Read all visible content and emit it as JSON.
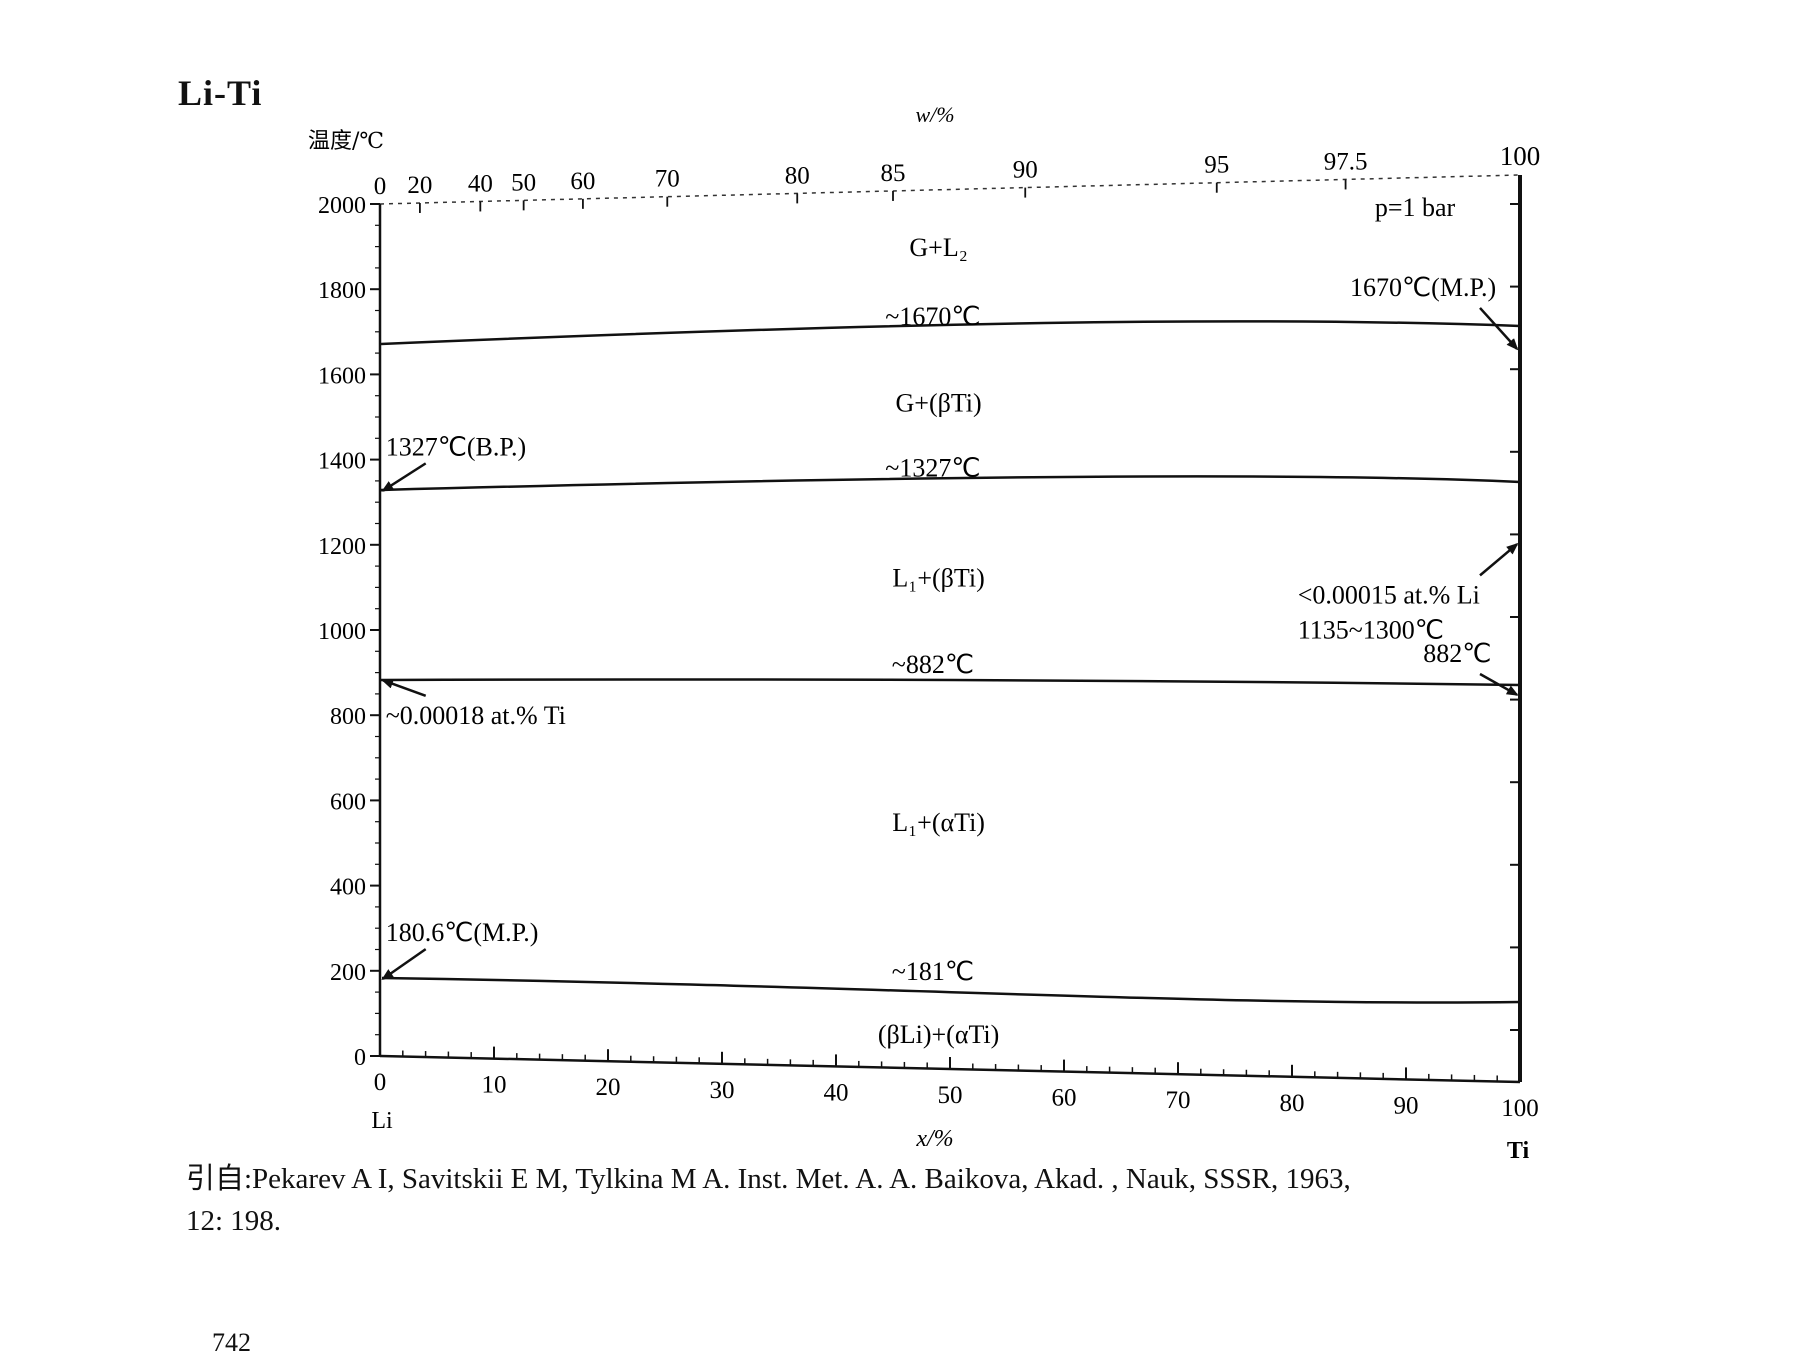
{
  "page": {
    "system_title": "Li-Ti",
    "source_line1": "引自:Pekarev A I, Savitskii E M, Tylkina M A. Inst. Met. A. A. Baikova, Akad. , Nauk, SSSR, 1963,",
    "source_line2": "12: 198.",
    "page_number": "742"
  },
  "chart_data": {
    "type": "line",
    "title": "Li-Ti",
    "xlabel": "x/%",
    "ylabel": "温度/℃",
    "top_axis_label": "w/%",
    "xlim": [
      0,
      100
    ],
    "ylim": [
      0,
      2000
    ],
    "grid": false,
    "x_ticks": [
      "0",
      "10",
      "20",
      "30",
      "40",
      "50",
      "60",
      "70",
      "80",
      "90",
      "100"
    ],
    "y_ticks": [
      "0",
      "200",
      "400",
      "600",
      "800",
      "1000",
      "1200",
      "1400",
      "1600",
      "1800",
      "2000"
    ],
    "top_ticks": [
      {
        "label": "0",
        "x": 0
      },
      {
        "label": "20",
        "x": 3.5
      },
      {
        "label": "40",
        "x": 8.8
      },
      {
        "label": "50",
        "x": 12.6
      },
      {
        "label": "60",
        "x": 17.8
      },
      {
        "label": "70",
        "x": 25.2
      },
      {
        "label": "80",
        "x": 36.6
      },
      {
        "label": "85",
        "x": 45.0
      },
      {
        "label": "90",
        "x": 56.6
      },
      {
        "label": "95",
        "x": 73.4
      },
      {
        "label": "97.5",
        "x": 84.7
      },
      {
        "label": "100",
        "x": 100
      }
    ],
    "end_labels": {
      "left": "Li",
      "right": "Ti"
    },
    "pressure_note": "p=1 bar",
    "series": [
      {
        "name": "~1670℃",
        "x": [
          0,
          50,
          100
        ],
        "y": [
          1670,
          1670,
          1670
        ]
      },
      {
        "name": "~1327℃",
        "x": [
          0,
          50,
          100
        ],
        "y": [
          1327,
          1327,
          1327
        ]
      },
      {
        "name": "~882℃",
        "x": [
          0,
          50,
          100
        ],
        "y": [
          882,
          882,
          882
        ]
      },
      {
        "name": "~181℃",
        "x": [
          0,
          50,
          100
        ],
        "y": [
          181,
          181,
          181
        ]
      }
    ],
    "phase_regions": [
      {
        "label": "G+L₂",
        "x": 49,
        "y": 1880
      },
      {
        "label": "G+(βTi)",
        "x": 49,
        "y": 1520
      },
      {
        "label": "L₁+(βTi)",
        "x": 49,
        "y": 1115
      },
      {
        "label": "L₁+(αTi)",
        "x": 49,
        "y": 550
      },
      {
        "label": "(βLi)+(αTi)",
        "x": 49,
        "y": 60
      }
    ],
    "line_labels": [
      {
        "text": "~1670℃",
        "x": 48.5,
        "y": 1720
      },
      {
        "text": "~1327℃",
        "x": 48.5,
        "y": 1370
      },
      {
        "text": "~882℃",
        "x": 48.5,
        "y": 915
      },
      {
        "text": "~181℃",
        "x": 48.5,
        "y": 205
      }
    ],
    "annotations": [
      {
        "text": "1670℃(M.P.)",
        "x": 91.5,
        "y": 1790,
        "anchor": "middle",
        "arrow_to": [
          100,
          1670
        ]
      },
      {
        "text": "1327℃(B.P.)",
        "x": 0.5,
        "y": 1410,
        "anchor": "start",
        "arrow_to": [
          0,
          1327
        ]
      },
      {
        "text": "<0.00015 at.% Li",
        "x": 80.5,
        "y": 1085,
        "anchor": "start",
        "arrow_to": [
          100,
          1225
        ]
      },
      {
        "text": "1135~1300℃",
        "x": 80.5,
        "y": 1005,
        "anchor": "start",
        "arrow_to": null
      },
      {
        "text": "882℃",
        "x": 94.5,
        "y": 955,
        "anchor": "middle",
        "arrow_to": [
          100,
          882
        ]
      },
      {
        "text": "~0.00018 at.% Ti",
        "x": 0.5,
        "y": 780,
        "anchor": "start",
        "arrow_to": [
          0,
          882
        ]
      },
      {
        "text": "180.6℃(M.P.)",
        "x": 0.5,
        "y": 270,
        "anchor": "start",
        "arrow_to": [
          0,
          181
        ]
      }
    ]
  }
}
